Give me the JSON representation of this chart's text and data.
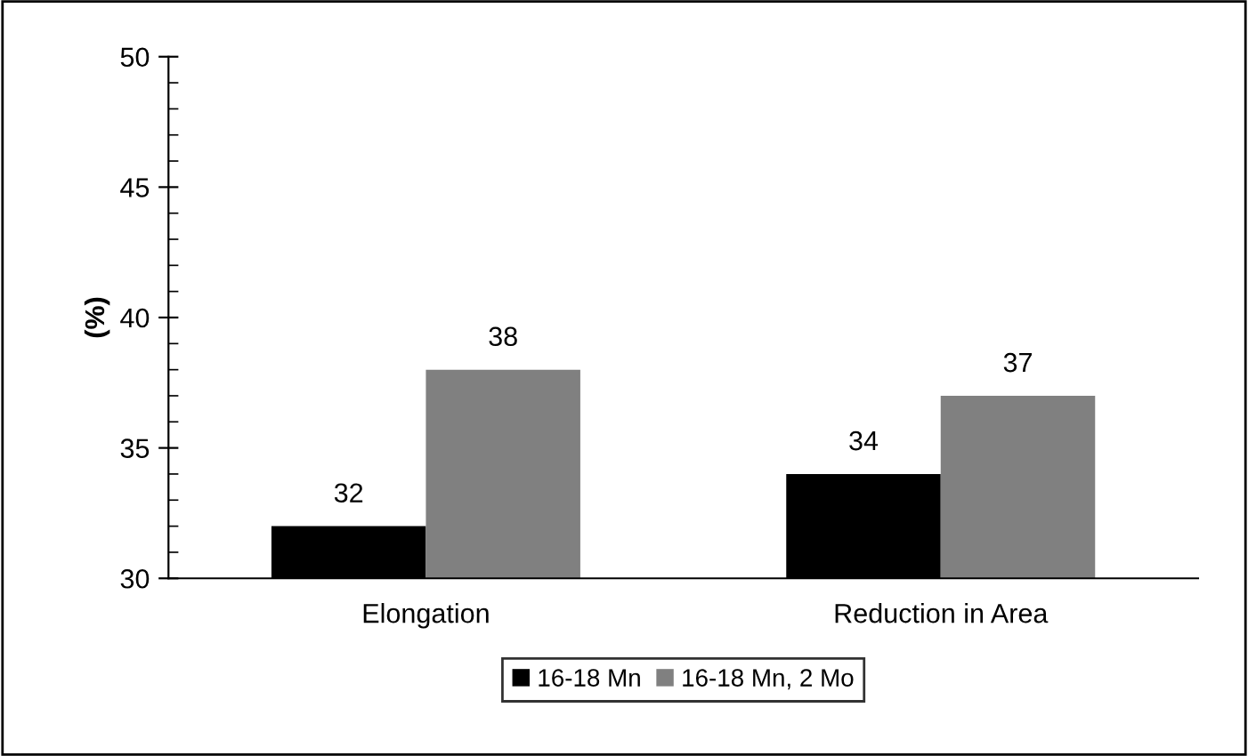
{
  "chart_data": {
    "type": "bar",
    "ylabel": "(%)",
    "categories": [
      "Elongation",
      "Reduction in Area"
    ],
    "series": [
      {
        "name": "16-18 Mn",
        "color": "#000000",
        "values": [
          32,
          34
        ]
      },
      {
        "name": "16-18 Mn, 2 Mo",
        "color": "#808080",
        "values": [
          38,
          37
        ]
      }
    ],
    "ylim": [
      30,
      50
    ],
    "yticks": [
      30,
      35,
      40,
      45,
      50
    ],
    "data_labels": true,
    "grid": false,
    "legend": "bottom"
  }
}
